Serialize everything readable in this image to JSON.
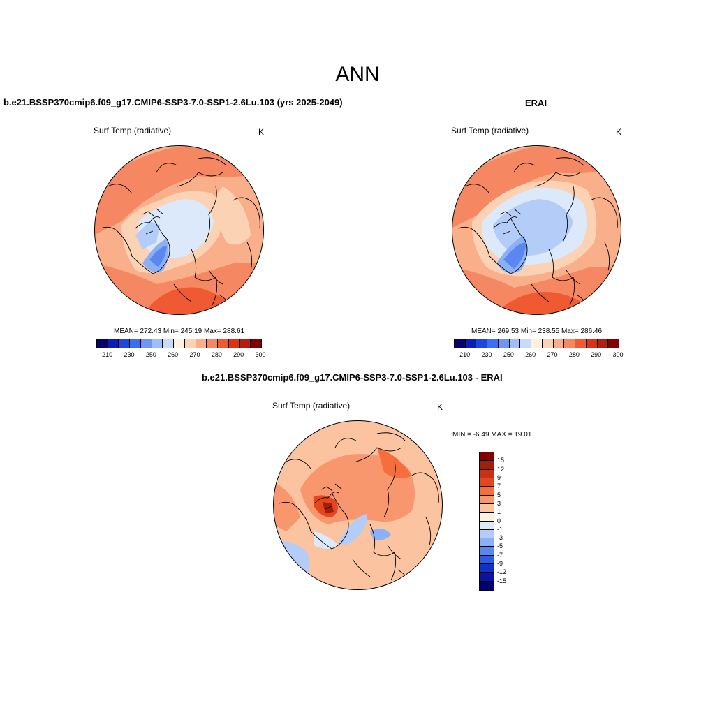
{
  "title": "ANN",
  "panels": {
    "model": {
      "title": "b.e21.BSSP370cmip6.f09_g17.CMIP6-SSP3-7.0-SSP1-2.6Lu.103 (yrs 2025-2049)",
      "variable": "Surf Temp (radiative)",
      "units": "K",
      "stats": "MEAN= 272.43  Min= 245.19  Max= 288.61",
      "mean": 272.43,
      "min": 245.19,
      "max": 288.61
    },
    "obs": {
      "title": "ERAI",
      "variable": "Surf Temp (radiative)",
      "units": "K",
      "stats": "MEAN= 269.53  Min= 238.55  Max= 286.46",
      "mean": 269.53,
      "min": 238.55,
      "max": 286.46
    },
    "diff": {
      "title": "b.e21.BSSP370cmip6.f09_g17.CMIP6-SSP3-7.0-SSP1-2.6Lu.103 - ERAI",
      "variable": "Surf Temp (radiative)",
      "units": "K",
      "stats": "MIN =  -6.49 MAX =  19.01",
      "min": -6.49,
      "max": 19.01
    }
  },
  "colorbar_abs": {
    "colors": [
      "#08006e",
      "#0a1eb4",
      "#1e46dc",
      "#3c6ef0",
      "#6e96f5",
      "#a0bdf8",
      "#c8dcfa",
      "#fff0e0",
      "#fcd2b4",
      "#f8af8a",
      "#f58762",
      "#f05a32",
      "#dc3214",
      "#b41e0a",
      "#820000"
    ],
    "tick_labels": [
      "210",
      "230",
      "250",
      "260",
      "270",
      "280",
      "290",
      "300"
    ]
  },
  "colorbar_diff": {
    "colors": [
      "#820000",
      "#a01e0a",
      "#c83214",
      "#e6461e",
      "#f56e3c",
      "#f8966e",
      "#fbc3a0",
      "#fff0e0",
      "#dce9fa",
      "#b4cdf8",
      "#8cb0f5",
      "#5a87f0",
      "#2d5ae6",
      "#0f32c8",
      "#0a14a0",
      "#00006e"
    ],
    "tick_labels": [
      "15",
      "12",
      "9",
      "7",
      "5",
      "3",
      "1",
      "0",
      "-1",
      "-3",
      "-5",
      "-7",
      "-9",
      "-12",
      "-15"
    ]
  }
}
